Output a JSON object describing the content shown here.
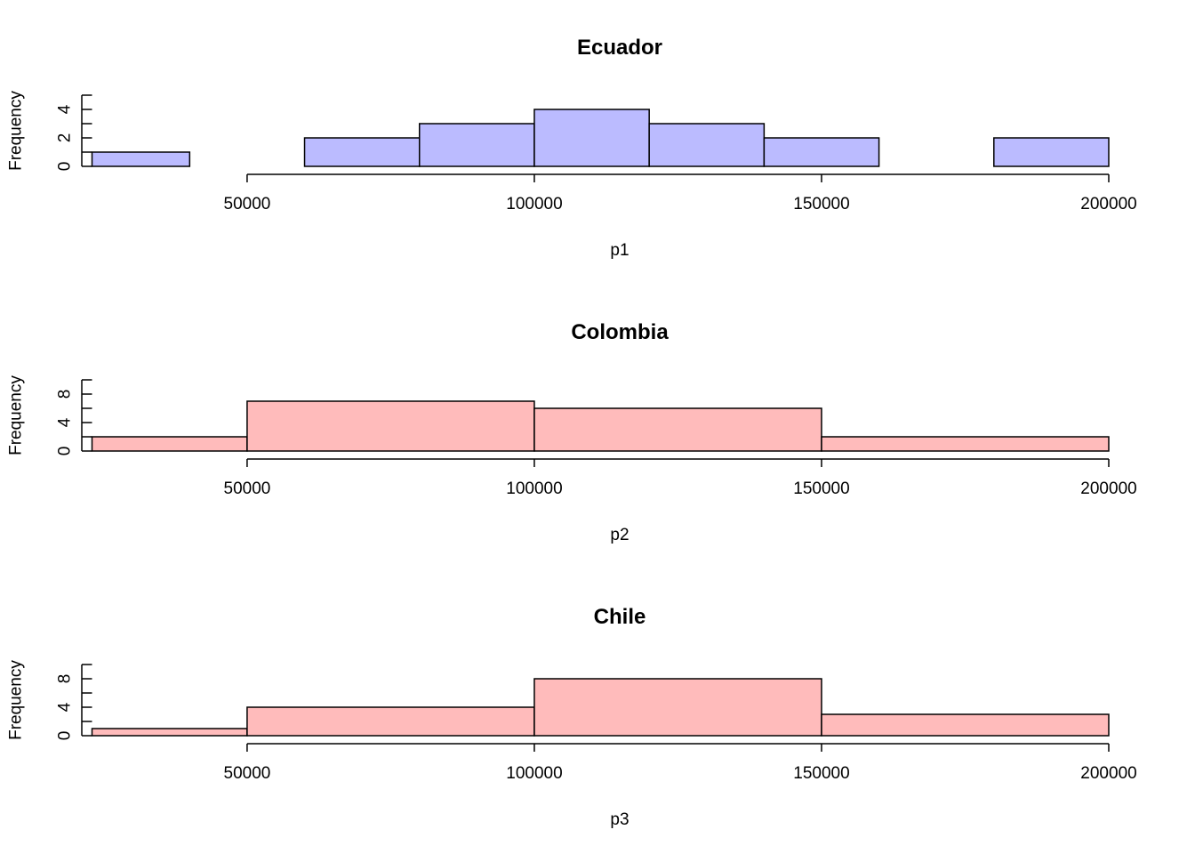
{
  "chart_data": [
    {
      "type": "bar",
      "title": "Ecuador",
      "xlabel": "p1",
      "ylabel": "Frequency",
      "fill": "#bbbbff",
      "xlim": [
        23000,
        200000
      ],
      "ylim": [
        0,
        5
      ],
      "xticks": [
        50000,
        100000,
        150000,
        200000
      ],
      "xtick_labels": [
        "50000",
        "100000",
        "150000",
        "200000"
      ],
      "yticks": [
        0,
        2,
        4
      ],
      "ytick_labels": [
        "0",
        "2",
        "4"
      ],
      "yaxis_max": 5,
      "bins": [
        {
          "start": 20000,
          "end": 40000,
          "count": 1
        },
        {
          "start": 40000,
          "end": 60000,
          "count": 0
        },
        {
          "start": 60000,
          "end": 80000,
          "count": 2
        },
        {
          "start": 80000,
          "end": 100000,
          "count": 3
        },
        {
          "start": 100000,
          "end": 120000,
          "count": 4
        },
        {
          "start": 120000,
          "end": 140000,
          "count": 3
        },
        {
          "start": 140000,
          "end": 160000,
          "count": 2
        },
        {
          "start": 160000,
          "end": 180000,
          "count": 0
        },
        {
          "start": 180000,
          "end": 200000,
          "count": 2
        }
      ]
    },
    {
      "type": "bar",
      "title": "Colombia",
      "xlabel": "p2",
      "ylabel": "Frequency",
      "fill": "#ffbbbb",
      "xlim": [
        23000,
        200000
      ],
      "ylim": [
        0,
        10
      ],
      "xticks": [
        50000,
        100000,
        150000,
        200000
      ],
      "xtick_labels": [
        "50000",
        "100000",
        "150000",
        "200000"
      ],
      "yticks": [
        0,
        4,
        8
      ],
      "ytick_labels": [
        "0",
        "4",
        "8"
      ],
      "yaxis_max": 10,
      "bins": [
        {
          "start": 0,
          "end": 50000,
          "count": 2
        },
        {
          "start": 50000,
          "end": 100000,
          "count": 7
        },
        {
          "start": 100000,
          "end": 150000,
          "count": 6
        },
        {
          "start": 150000,
          "end": 200000,
          "count": 2
        }
      ]
    },
    {
      "type": "bar",
      "title": "Chile",
      "xlabel": "p3",
      "ylabel": "Frequency",
      "fill": "#ffbbbb",
      "xlim": [
        23000,
        200000
      ],
      "ylim": [
        0,
        10
      ],
      "xticks": [
        50000,
        100000,
        150000,
        200000
      ],
      "xtick_labels": [
        "50000",
        "100000",
        "150000",
        "200000"
      ],
      "yticks": [
        0,
        4,
        8
      ],
      "ytick_labels": [
        "0",
        "4",
        "8"
      ],
      "yaxis_max": 10,
      "bins": [
        {
          "start": 0,
          "end": 50000,
          "count": 1
        },
        {
          "start": 50000,
          "end": 100000,
          "count": 4
        },
        {
          "start": 100000,
          "end": 150000,
          "count": 8
        },
        {
          "start": 150000,
          "end": 200000,
          "count": 3
        }
      ]
    }
  ]
}
